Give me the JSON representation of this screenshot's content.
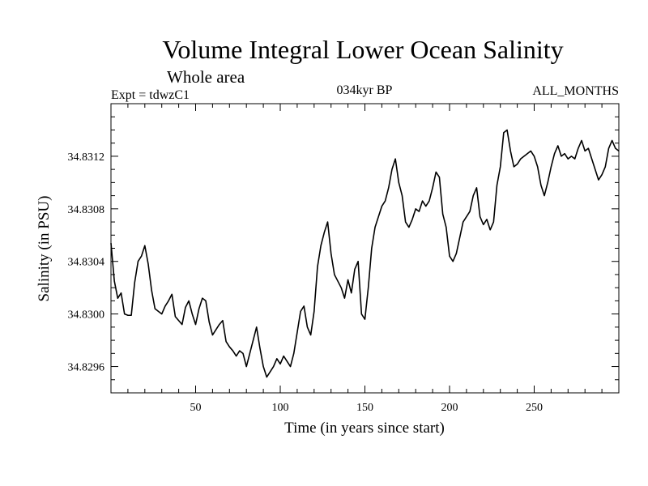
{
  "chart_data": {
    "type": "line",
    "title": "Volume Integral Lower Ocean Salinity",
    "subtitle": "Whole area",
    "experiment": "Expt = tdwzC1",
    "period": "034kyr BP",
    "months": "ALL_MONTHS",
    "xlabel": "Time (in years since start)",
    "ylabel": "Salinity (in PSU)",
    "xlim": [
      0,
      300
    ],
    "ylim": [
      34.8294,
      34.8316
    ],
    "xticks": [
      50,
      100,
      150,
      200,
      250
    ],
    "xtick_labels": [
      "50",
      "100",
      "150",
      "200",
      "250"
    ],
    "yticks": [
      34.8296,
      34.83,
      34.8304,
      34.8308,
      34.8312
    ],
    "ytick_labels": [
      "34.8296",
      "34.8300",
      "34.8304",
      "34.8308",
      "34.8312"
    ],
    "series": [
      {
        "name": "salinity",
        "color": "#000000",
        "x": [
          0,
          2,
          4,
          6,
          8,
          10,
          12,
          14,
          16,
          18,
          20,
          22,
          24,
          26,
          28,
          30,
          32,
          34,
          36,
          38,
          40,
          42,
          44,
          46,
          48,
          50,
          52,
          54,
          56,
          58,
          60,
          62,
          64,
          66,
          68,
          70,
          72,
          74,
          76,
          78,
          80,
          82,
          84,
          86,
          88,
          90,
          92,
          94,
          96,
          98,
          100,
          102,
          104,
          106,
          108,
          110,
          112,
          114,
          116,
          118,
          120,
          122,
          124,
          126,
          128,
          130,
          132,
          134,
          136,
          138,
          140,
          142,
          144,
          146,
          148,
          150,
          152,
          154,
          156,
          158,
          160,
          162,
          164,
          166,
          168,
          170,
          172,
          174,
          176,
          178,
          180,
          182,
          184,
          186,
          188,
          190,
          192,
          194,
          196,
          198,
          200,
          202,
          204,
          206,
          208,
          210,
          212,
          214,
          216,
          218,
          220,
          222,
          224,
          226,
          228,
          230,
          232,
          234,
          236,
          238,
          240,
          242,
          244,
          246,
          248,
          250,
          252,
          254,
          256,
          258,
          260,
          262,
          264,
          266,
          268,
          270,
          272,
          274,
          276,
          278,
          280,
          282,
          284,
          286,
          288,
          290,
          292,
          294,
          296,
          298,
          300
        ],
        "values": [
          34.83054,
          34.83025,
          34.83012,
          34.83016,
          34.83,
          34.82999,
          34.82999,
          34.83024,
          34.8304,
          34.83044,
          34.83052,
          34.83038,
          34.83018,
          34.83004,
          34.83002,
          34.83,
          34.83006,
          34.8301,
          34.83015,
          34.82998,
          34.82995,
          34.82992,
          34.83005,
          34.8301,
          34.83,
          34.82992,
          34.83004,
          34.83012,
          34.8301,
          34.82994,
          34.82984,
          34.82988,
          34.82992,
          34.82995,
          34.82979,
          34.82975,
          34.82972,
          34.82968,
          34.82972,
          34.8297,
          34.8296,
          34.8297,
          34.8298,
          34.8299,
          34.82974,
          34.8296,
          34.82952,
          34.82956,
          34.8296,
          34.82966,
          34.82962,
          34.82968,
          34.82964,
          34.8296,
          34.8297,
          34.82986,
          34.83002,
          34.83006,
          34.8299,
          34.82984,
          34.83002,
          34.83036,
          34.83052,
          34.83062,
          34.8307,
          34.83046,
          34.8303,
          34.83025,
          34.8302,
          34.83012,
          34.83026,
          34.83016,
          34.83034,
          34.8304,
          34.83,
          34.82996,
          34.8302,
          34.8305,
          34.83066,
          34.83074,
          34.83082,
          34.83086,
          34.83096,
          34.8311,
          34.83118,
          34.831,
          34.8309,
          34.8307,
          34.83066,
          34.83072,
          34.8308,
          34.83078,
          34.83086,
          34.83082,
          34.83086,
          34.83096,
          34.83108,
          34.83104,
          34.83076,
          34.83066,
          34.83044,
          34.8304,
          34.83046,
          34.83058,
          34.8307,
          34.83074,
          34.83078,
          34.8309,
          34.83096,
          34.83074,
          34.83068,
          34.83072,
          34.83064,
          34.8307,
          34.83098,
          34.83112,
          34.83138,
          34.8314,
          34.83124,
          34.83112,
          34.83114,
          34.83118,
          34.8312,
          34.83122,
          34.83124,
          34.8312,
          34.83112,
          34.83098,
          34.8309,
          34.831,
          34.83112,
          34.83122,
          34.83128,
          34.8312,
          34.83122,
          34.83118,
          34.8312,
          34.83118,
          34.83126,
          34.83132,
          34.83124,
          34.83126,
          34.83118,
          34.8311,
          34.83102,
          34.83106,
          34.83112,
          34.83126,
          34.83132,
          34.83126,
          34.83124
        ]
      }
    ]
  }
}
